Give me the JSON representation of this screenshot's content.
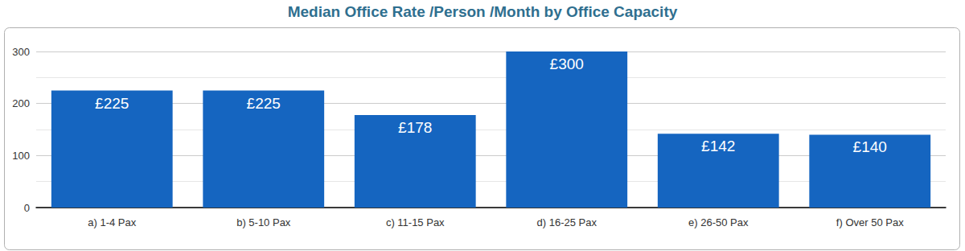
{
  "chart_data": {
    "type": "bar",
    "title": "Median Office Rate /Person /Month by Office Capacity",
    "categories": [
      "a) 1-4 Pax",
      "b) 5-10 Pax",
      "c) 11-15 Pax",
      "d) 16-25 Pax",
      "e) 26-50 Pax",
      "f) Over 50 Pax"
    ],
    "values": [
      225,
      225,
      178,
      300,
      142,
      140
    ],
    "value_labels": [
      "£225",
      "£225",
      "£178",
      "£300",
      "£142",
      "£140"
    ],
    "color": "#1565c0",
    "ylim": [
      0,
      300
    ],
    "yticks": [
      0,
      100,
      200,
      300
    ],
    "grid": true,
    "data_labels": true
  }
}
